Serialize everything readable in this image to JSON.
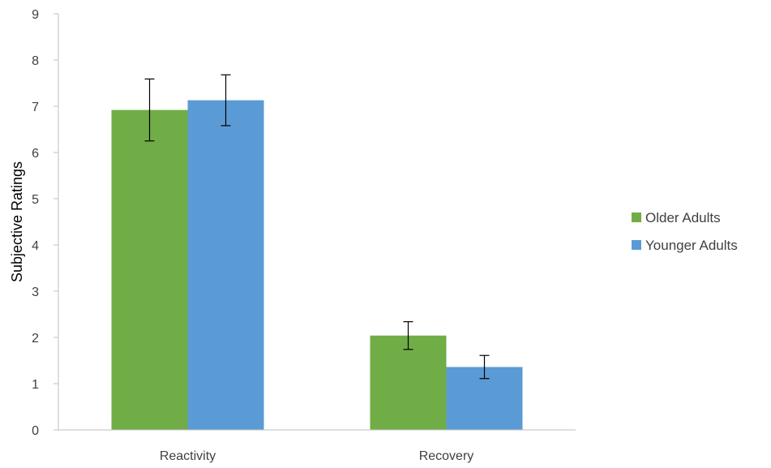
{
  "chart_data": {
    "type": "bar",
    "title": "",
    "xlabel": "",
    "ylabel": "Subjective Ratings",
    "ylim": [
      0,
      9
    ],
    "yticks": [
      0,
      1,
      2,
      3,
      4,
      5,
      6,
      7,
      8,
      9
    ],
    "categories": [
      "Reactivity",
      "Recovery"
    ],
    "series": [
      {
        "name": "Older Adults",
        "color": "#70ad47",
        "values": [
          6.92,
          2.04
        ],
        "errors": [
          0.67,
          0.3
        ]
      },
      {
        "name": "Younger Adults",
        "color": "#5b9bd5",
        "values": [
          7.13,
          1.36
        ],
        "errors": [
          0.55,
          0.25
        ]
      }
    ],
    "legend_position": "right",
    "grid": false,
    "error_bars": true
  }
}
